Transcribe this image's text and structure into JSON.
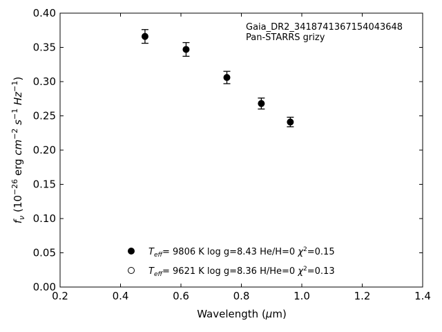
{
  "chart_data": {
    "type": "scatter",
    "xlabel": "Wavelength (μm)",
    "ylabel": "f_ν (10^−26 erg cm^−2 s^−1 Hz^−1)",
    "xlim": [
      0.2,
      1.4
    ],
    "ylim": [
      0.0,
      0.4
    ],
    "xticks": [
      "0.2",
      "0.4",
      "0.6",
      "0.8",
      "1.0",
      "1.2",
      "1.4"
    ],
    "yticks": [
      "0.00",
      "0.05",
      "0.10",
      "0.15",
      "0.20",
      "0.25",
      "0.30",
      "0.35",
      "0.40"
    ],
    "grid": false,
    "annotation": [
      "Gaia_DR2_3418741367154043648",
      "Pan-STARRS grizy"
    ],
    "annotation_placement": "top-right",
    "series": [
      {
        "name": "Teff= 9806 K log g=8.43 He/H=0 χ2=0.15",
        "marker": "filled-circle",
        "x": [
          0.481,
          0.617,
          0.752,
          0.866,
          0.962
        ],
        "y": [
          0.366,
          0.347,
          0.306,
          0.268,
          0.241
        ],
        "yerr": [
          0.01,
          0.01,
          0.009,
          0.008,
          0.007
        ]
      },
      {
        "name": "Teff= 9621 K log g=8.36 H/He=0 χ2=0.13",
        "marker": "open-circle",
        "x": [],
        "y": []
      }
    ],
    "legend": [
      {
        "marker": "filled-circle",
        "teff_label": "T",
        "teff_sub": "eff",
        "teff": "= 9806 K",
        "logg": "log g=8.43",
        "comp": "He/H=0",
        "chi_label": "χ",
        "chi_sup": "2",
        "chi": "=0.15"
      },
      {
        "marker": "open-circle",
        "teff_label": "T",
        "teff_sub": "eff",
        "teff": "= 9621 K",
        "logg": "log g=8.36",
        "comp": "H/He=0",
        "chi_label": "χ",
        "chi_sup": "2",
        "chi": "=0.13"
      }
    ],
    "legend_placement": "bottom-center",
    "axis_label_parts": {
      "x_pre": "Wavelength (",
      "x_mu": "μ",
      "x_post": "m)",
      "y_f": "f",
      "y_nu": "ν",
      "y_open": " (10",
      "y_exp1": "−26",
      "y_erg": " erg ",
      "y_cm": "cm",
      "y_exp2": "−2",
      "y_s": " s",
      "y_exp3": "−1",
      "y_hz": " Hz",
      "y_exp4": "−1",
      "y_close": ")"
    }
  }
}
